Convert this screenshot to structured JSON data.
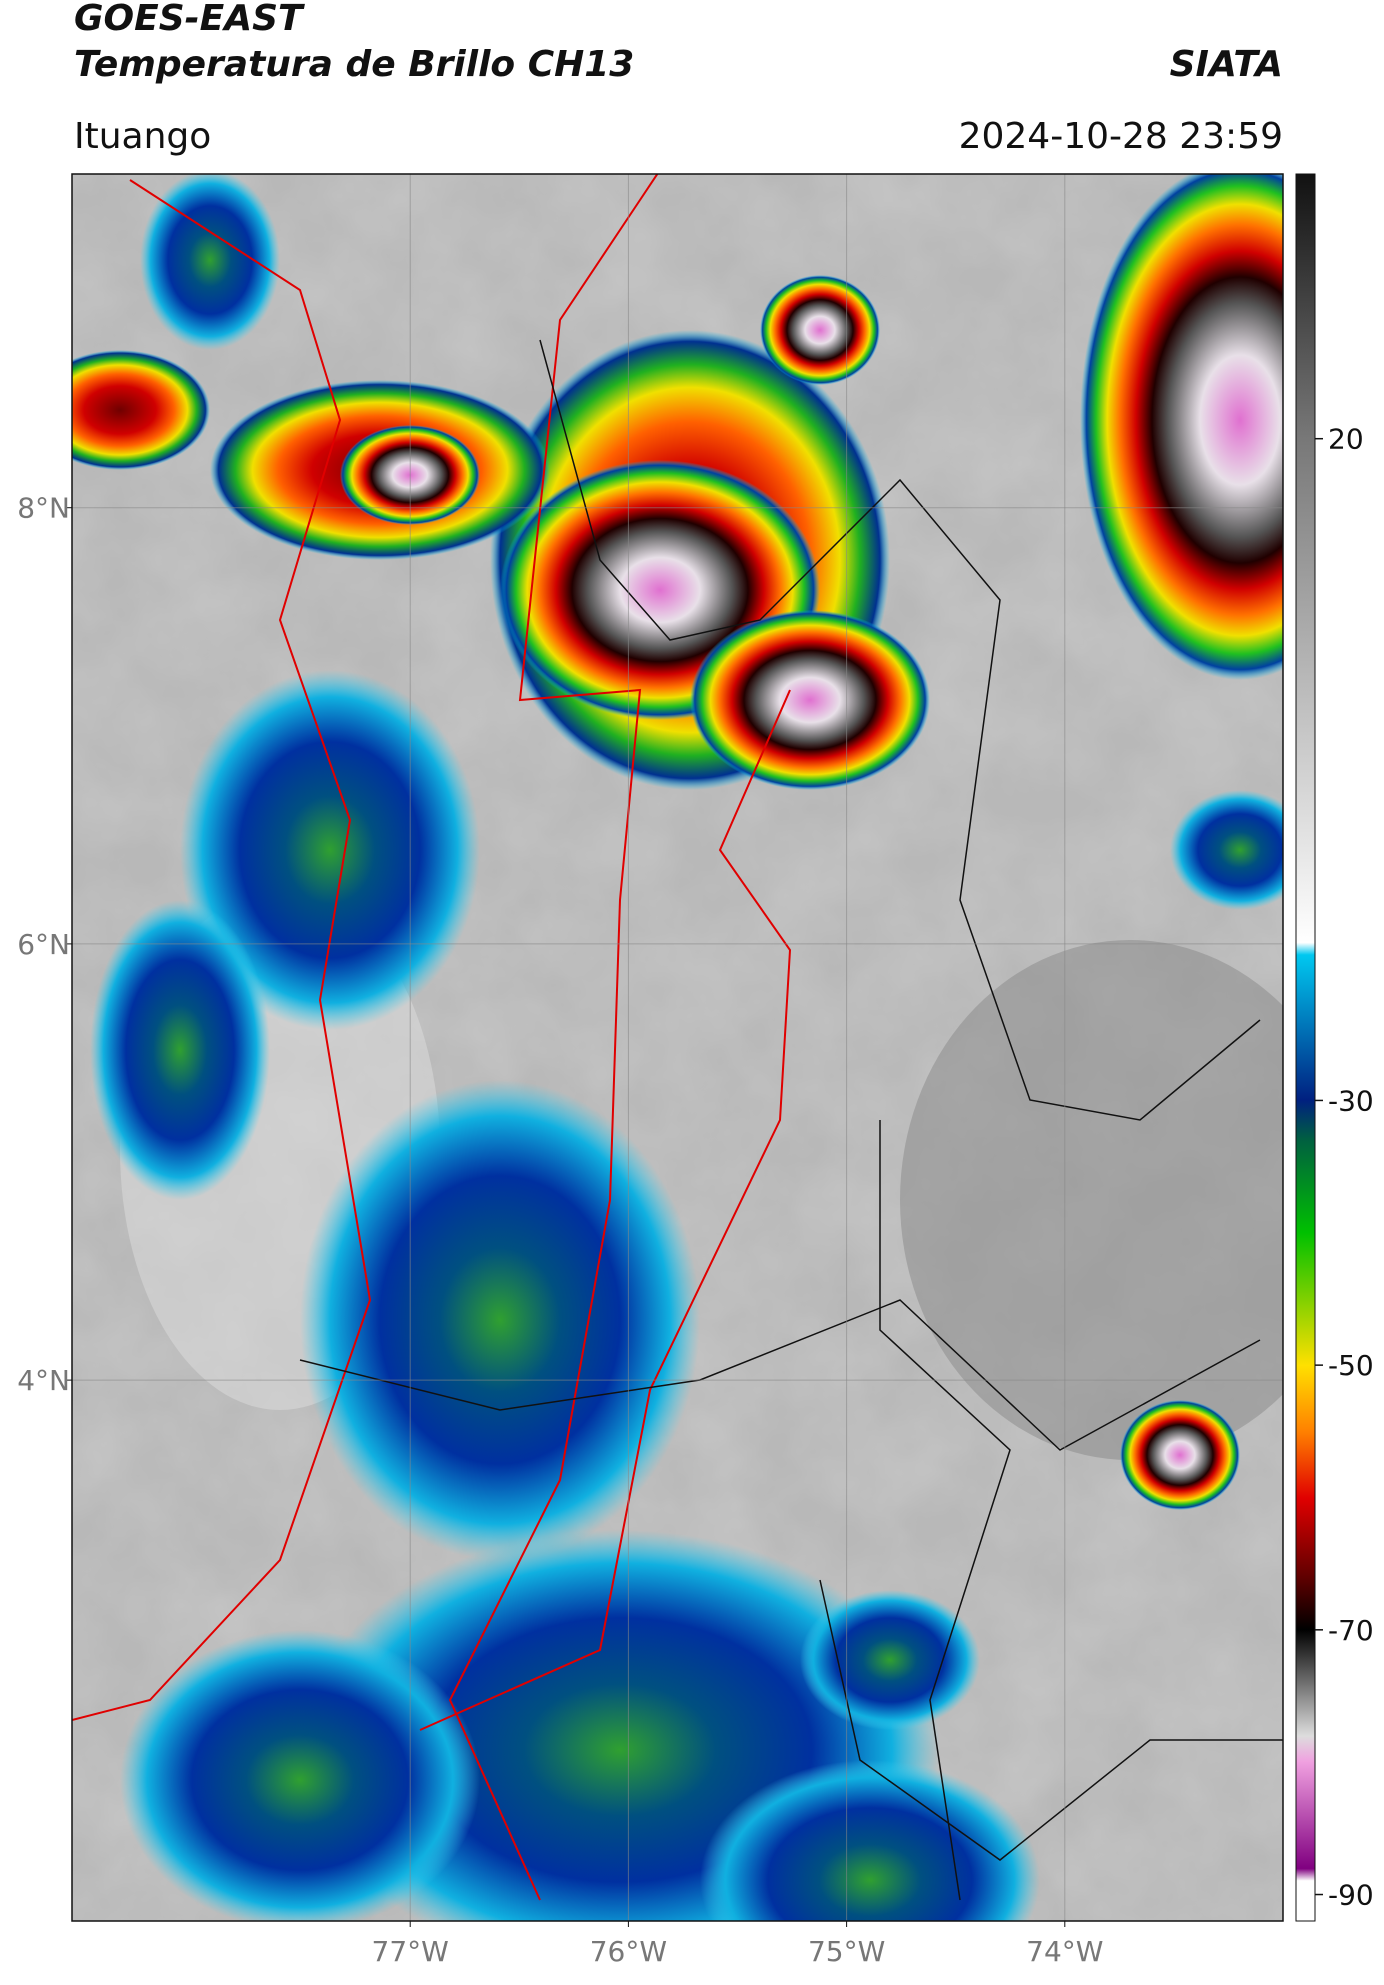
{
  "header": {
    "title_line1": "GOES-EAST",
    "title_line2": "Temperatura de Brillo CH13",
    "source": "SIATA",
    "region": "Ituango",
    "datetime": "2024-10-28 23:59"
  },
  "map": {
    "lonlim": [
      -78.55,
      -73
    ],
    "latlim": [
      1.52,
      9.53
    ],
    "lon_ticks": [
      {
        "value": -77,
        "label": "77°W"
      },
      {
        "value": -76,
        "label": "76°W"
      },
      {
        "value": -75,
        "label": "75°W"
      },
      {
        "value": -74,
        "label": "74°W"
      }
    ],
    "lat_ticks": [
      {
        "value": 8,
        "label": "8°N"
      },
      {
        "value": 6,
        "label": "6°N"
      },
      {
        "value": 4,
        "label": "4°N"
      }
    ]
  },
  "colorbar": {
    "lim": [
      -92,
      40
    ],
    "ticks": [
      20,
      -30,
      -50,
      -70,
      -90
    ]
  }
}
